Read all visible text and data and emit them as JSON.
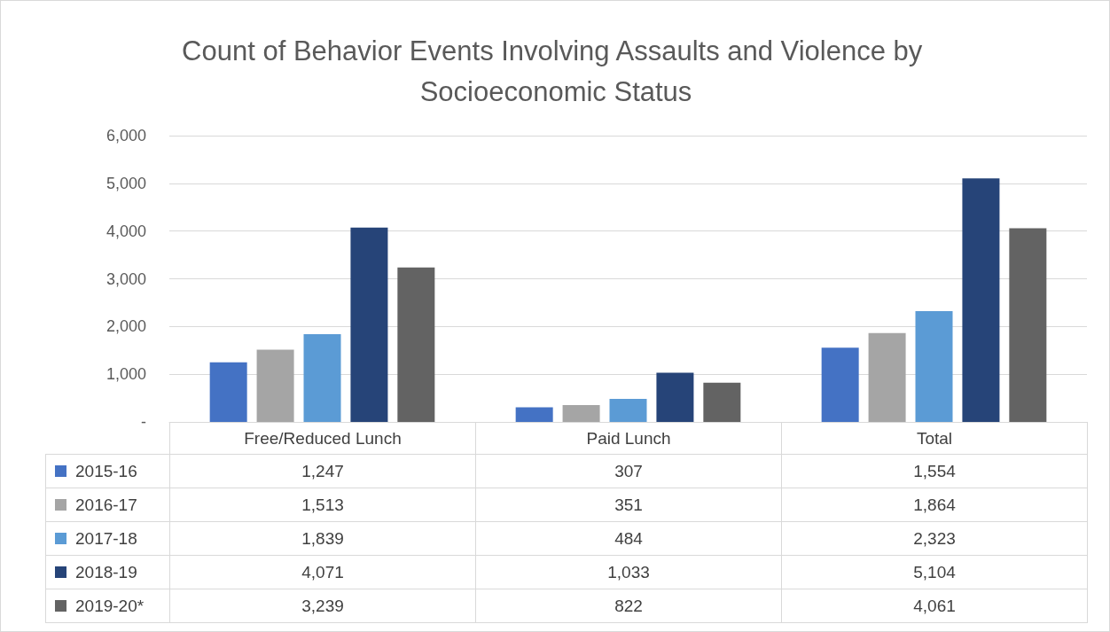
{
  "chart_data": {
    "type": "bar",
    "title": "Count of Behavior Events Involving Assaults and Violence by Socioeconomic Status",
    "categories": [
      "Free/Reduced Lunch",
      "Paid Lunch",
      "Total"
    ],
    "series": [
      {
        "name": "2015-16",
        "color": "#4472c4",
        "values": [
          1247,
          307,
          1554
        ],
        "value_labels": [
          "1,247",
          "307",
          "1,554"
        ]
      },
      {
        "name": "2016-17",
        "color": "#a5a5a5",
        "values": [
          1513,
          351,
          1864
        ],
        "value_labels": [
          "1,513",
          "351",
          "1,864"
        ]
      },
      {
        "name": "2017-18",
        "color": "#5b9bd5",
        "values": [
          1839,
          484,
          2323
        ],
        "value_labels": [
          "1,839",
          "484",
          "2,323"
        ]
      },
      {
        "name": "2018-19",
        "color": "#264478",
        "values": [
          4071,
          1033,
          5104
        ],
        "value_labels": [
          "4,071",
          "1,033",
          "5,104"
        ]
      },
      {
        "name": "2019-20*",
        "color": "#636363",
        "values": [
          3239,
          822,
          4061
        ],
        "value_labels": [
          "3,239",
          "822",
          "4,061"
        ]
      }
    ],
    "ylim": [
      0,
      6000
    ],
    "yticks": [
      {
        "value": 0,
        "label": "-"
      },
      {
        "value": 1000,
        "label": "1,000"
      },
      {
        "value": 2000,
        "label": "2,000"
      },
      {
        "value": 3000,
        "label": "3,000"
      },
      {
        "value": 4000,
        "label": "4,000"
      },
      {
        "value": 5000,
        "label": "5,000"
      },
      {
        "value": 6000,
        "label": "6,000"
      }
    ],
    "grid": "y",
    "legend": "bottom"
  }
}
